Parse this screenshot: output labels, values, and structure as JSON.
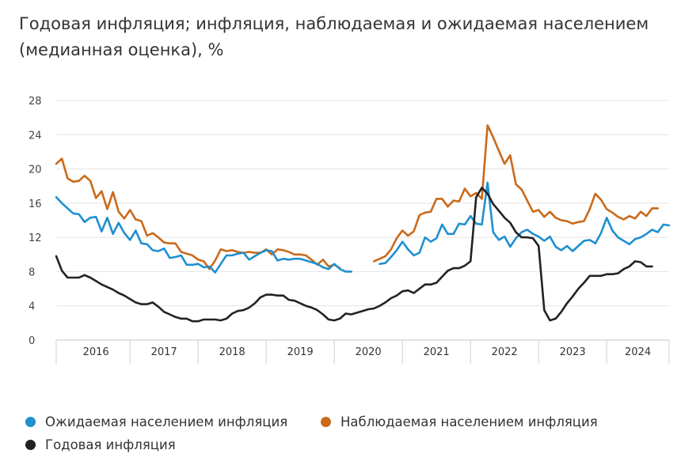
{
  "title": "Годовая инфляция; инфляция, наблюдаемая и ожидаемая населением (медианная оценка), %",
  "chart_data": {
    "type": "line",
    "x_start": "2015-12",
    "x_step": "1 month",
    "xlim": [
      "2015-12",
      "2024-12"
    ],
    "ylim": [
      0,
      28
    ],
    "yticks": [
      "0",
      "4",
      "8",
      "12",
      "16",
      "20",
      "24",
      "28"
    ],
    "xticks": [
      "2016",
      "2017",
      "2018",
      "2019",
      "2020",
      "2021",
      "2022",
      "2023",
      "2024"
    ],
    "grid": "horizontal",
    "legend_position": "bottom",
    "series": [
      {
        "name": "Ожидаемая населением инфляция",
        "color": "#1f8fd0",
        "values": [
          16.7,
          16.0,
          15.4,
          14.8,
          14.7,
          13.8,
          14.3,
          14.4,
          12.7,
          14.3,
          12.4,
          13.7,
          12.5,
          11.7,
          12.8,
          11.3,
          11.2,
          10.5,
          10.4,
          10.7,
          9.6,
          9.7,
          9.9,
          8.8,
          8.8,
          8.9,
          8.5,
          8.6,
          7.9,
          8.9,
          9.9,
          9.9,
          10.1,
          10.2,
          9.4,
          9.8,
          10.2,
          10.5,
          10.4,
          9.3,
          9.5,
          9.4,
          9.5,
          9.5,
          9.3,
          9.1,
          8.9,
          8.5,
          8.3,
          8.9,
          8.3,
          8.0,
          8.0,
          null,
          null,
          null,
          null,
          8.9,
          9.0,
          9.7,
          10.5,
          11.5,
          10.6,
          9.9,
          10.2,
          12.0,
          11.5,
          11.9,
          13.5,
          12.4,
          12.4,
          13.6,
          13.5,
          14.5,
          13.6,
          13.5,
          18.4,
          12.6,
          11.7,
          12.1,
          10.9,
          11.9,
          12.6,
          12.9,
          12.4,
          12.1,
          11.6,
          12.1,
          10.9,
          10.5,
          11.0,
          10.4,
          11.0,
          11.6,
          11.7,
          11.3,
          12.5,
          14.3,
          12.8,
          12.0,
          11.6,
          11.2,
          11.8,
          12.0,
          12.4,
          12.9,
          12.6,
          13.5,
          13.4
        ]
      },
      {
        "name": "Наблюдаемая населением инфляция",
        "color": "#c96a1b",
        "values": [
          20.6,
          21.2,
          18.9,
          18.5,
          18.6,
          19.2,
          18.6,
          16.6,
          17.4,
          15.3,
          17.3,
          15.0,
          14.2,
          15.2,
          14.1,
          13.9,
          12.2,
          12.5,
          12.0,
          11.4,
          11.3,
          11.3,
          10.3,
          10.1,
          9.9,
          9.4,
          9.2,
          8.3,
          9.3,
          10.6,
          10.4,
          10.5,
          10.3,
          10.2,
          10.3,
          10.2,
          10.2,
          10.6,
          10.0,
          10.6,
          10.5,
          10.3,
          10.0,
          10.0,
          9.9,
          9.4,
          8.8,
          9.4,
          8.6,
          8.8,
          8.4,
          null,
          null,
          null,
          null,
          null,
          9.2,
          9.5,
          9.8,
          10.6,
          11.9,
          12.8,
          12.2,
          12.7,
          14.6,
          14.9,
          15.0,
          16.5,
          16.5,
          15.6,
          16.3,
          16.2,
          17.7,
          16.8,
          17.2,
          16.5,
          25.1,
          23.7,
          22.1,
          20.6,
          21.6,
          18.2,
          17.6,
          16.3,
          15.0,
          15.2,
          14.4,
          15.0,
          14.3,
          14.0,
          13.9,
          13.6,
          13.8,
          13.9,
          15.3,
          17.1,
          16.4,
          15.3,
          14.9,
          14.4,
          14.1,
          14.5,
          14.2,
          15.0,
          14.5,
          15.4,
          15.4
        ]
      },
      {
        "name": "Годовая инфляция",
        "color": "#222222",
        "values": [
          9.8,
          8.1,
          7.3,
          7.3,
          7.3,
          7.6,
          7.3,
          6.9,
          6.5,
          6.2,
          5.9,
          5.5,
          5.2,
          4.8,
          4.4,
          4.2,
          4.2,
          4.4,
          3.9,
          3.3,
          3.0,
          2.7,
          2.5,
          2.5,
          2.2,
          2.2,
          2.4,
          2.4,
          2.4,
          2.3,
          2.5,
          3.1,
          3.4,
          3.5,
          3.8,
          4.3,
          5.0,
          5.3,
          5.3,
          5.2,
          5.2,
          4.7,
          4.6,
          4.3,
          4.0,
          3.8,
          3.5,
          3.0,
          2.4,
          2.3,
          2.5,
          3.1,
          3.0,
          3.2,
          3.4,
          3.6,
          3.7,
          4.0,
          4.4,
          4.9,
          5.2,
          5.7,
          5.8,
          5.5,
          6.0,
          6.5,
          6.5,
          6.7,
          7.4,
          8.1,
          8.4,
          8.4,
          8.7,
          9.2,
          16.7,
          17.8,
          17.1,
          15.9,
          15.1,
          14.3,
          13.7,
          12.6,
          12.0,
          12.0,
          11.9,
          11.0,
          3.5,
          2.3,
          2.5,
          3.3,
          4.3,
          5.1,
          6.0,
          6.7,
          7.5,
          7.5,
          7.5,
          7.7,
          7.7,
          7.8,
          8.3,
          8.6,
          9.2,
          9.1,
          8.6,
          8.6
        ]
      }
    ]
  }
}
